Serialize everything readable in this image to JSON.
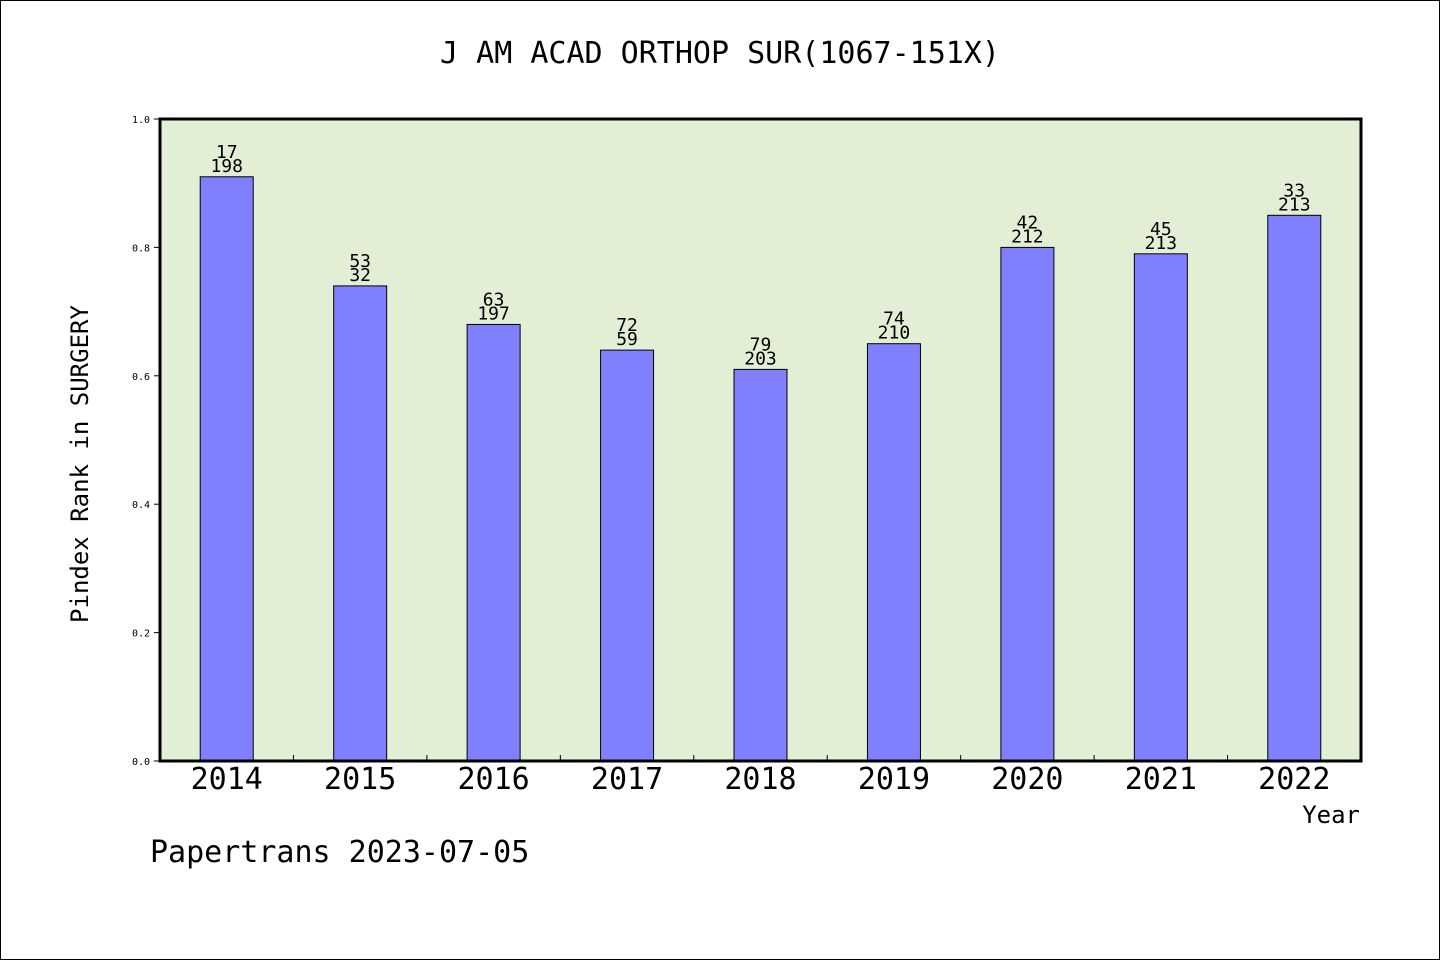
{
  "title": "J AM ACAD ORTHOP SUR(1067-151X)",
  "footer": "Papertrans 2023-07-05",
  "colors": {
    "plot_background": "#e2efd5",
    "bar_fill": "#8080ff",
    "bar_stroke": "#000000"
  },
  "chart_data": {
    "type": "bar",
    "title": "J AM ACAD ORTHOP SUR(1067-151X)",
    "xlabel": "Year",
    "ylabel": "Pindex Rank in SURGERY",
    "ylim": [
      0,
      1.0
    ],
    "yticks": [
      "0.0",
      "0.2",
      "0.4",
      "0.6",
      "0.8",
      "1.0"
    ],
    "grid": false,
    "categories": [
      "2014",
      "2015",
      "2016",
      "2017",
      "2018",
      "2019",
      "2020",
      "2021",
      "2022"
    ],
    "values": [
      0.91,
      0.74,
      0.68,
      0.64,
      0.61,
      0.65,
      0.8,
      0.79,
      0.85
    ],
    "label_top": [
      "17",
      "53",
      "63",
      "72",
      "79",
      "74",
      "42",
      "45",
      "33"
    ],
    "label_bottom": [
      "198",
      "32",
      "197",
      "59",
      "203",
      "210",
      "212",
      "213",
      "213"
    ]
  }
}
